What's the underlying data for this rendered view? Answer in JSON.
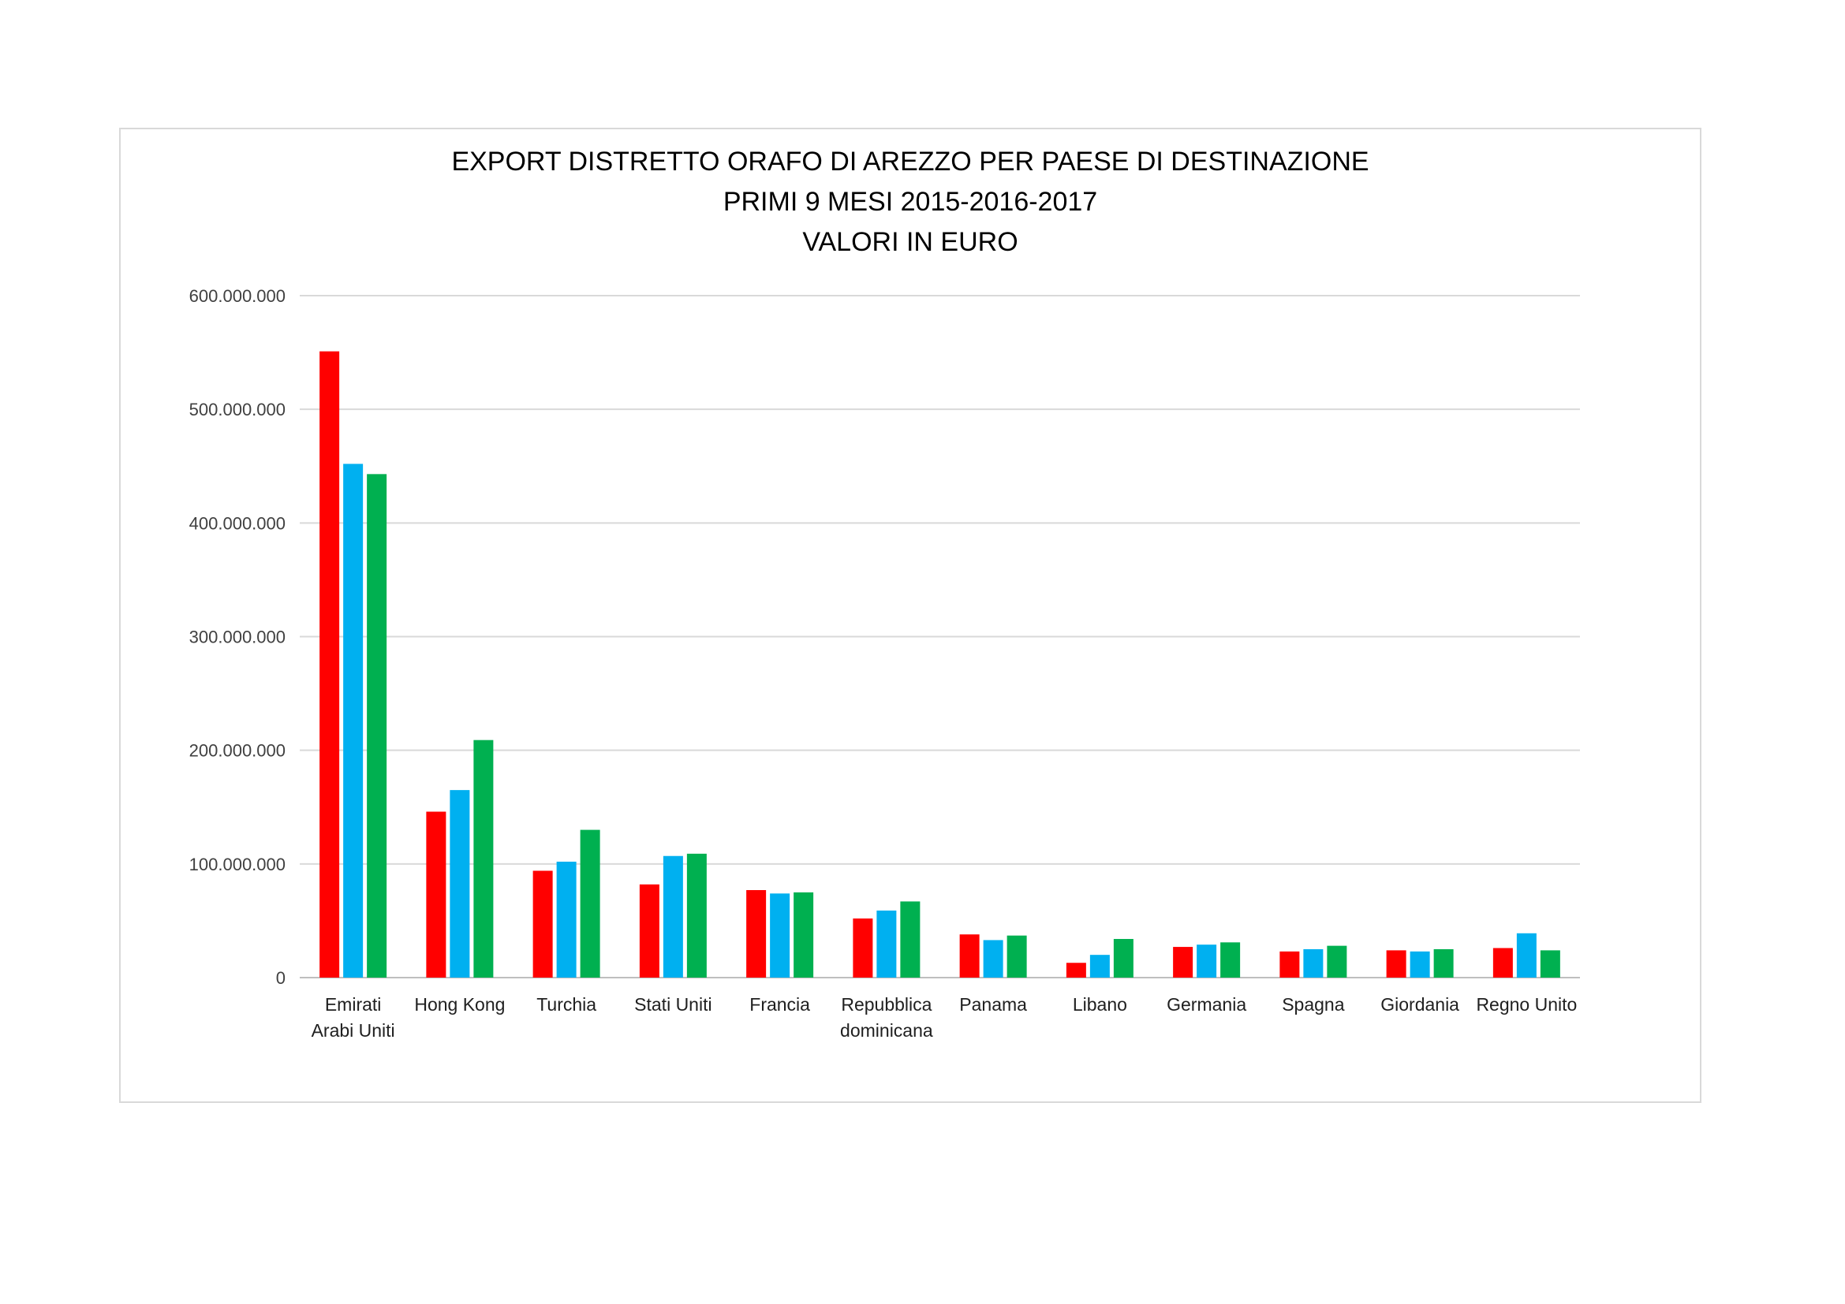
{
  "chart_data": {
    "type": "bar",
    "title_lines": [
      "EXPORT DISTRETTO ORAFO DI AREZZO PER PAESE DI DESTINAZIONE",
      "PRIMI 9 MESI 2015-2016-2017",
      "VALORI IN EURO"
    ],
    "categories": [
      [
        "Emirati",
        "Arabi Uniti"
      ],
      [
        "Hong Kong"
      ],
      [
        "Turchia"
      ],
      [
        "Stati Uniti"
      ],
      [
        "Francia"
      ],
      [
        "Repubblica",
        "dominicana"
      ],
      [
        "Panama"
      ],
      [
        "Libano"
      ],
      [
        "Germania"
      ],
      [
        "Spagna"
      ],
      [
        "Giordania"
      ],
      [
        "Regno Unito"
      ]
    ],
    "series": [
      {
        "color": "#ff0000",
        "values": [
          551000000,
          146000000,
          94000000,
          82000000,
          77000000,
          52000000,
          38000000,
          13000000,
          27000000,
          23000000,
          24000000,
          26000000
        ]
      },
      {
        "color": "#00b0f0",
        "values": [
          452000000,
          165000000,
          102000000,
          107000000,
          74000000,
          59000000,
          33000000,
          20000000,
          29000000,
          25000000,
          23000000,
          39000000
        ]
      },
      {
        "color": "#00b050",
        "values": [
          443000000,
          209000000,
          130000000,
          109000000,
          75000000,
          67000000,
          37000000,
          34000000,
          31000000,
          28000000,
          25000000,
          24000000
        ]
      }
    ],
    "y_ticks": [
      "0",
      "100.000.000",
      "200.000.000",
      "300.000.000",
      "400.000.000",
      "500.000.000",
      "600.000.000"
    ],
    "ylim": [
      0,
      600000000
    ],
    "y_step": 100000000,
    "grid": true,
    "legend": "none"
  }
}
